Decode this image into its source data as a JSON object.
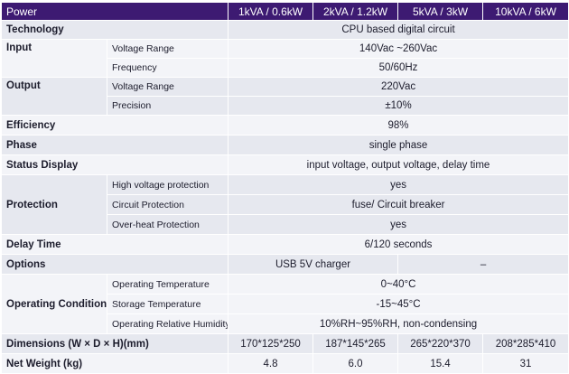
{
  "header": {
    "label": "Power",
    "models": [
      "1kVA / 0.6kW",
      "2kVA / 1.2kW",
      "5kVA / 3kW",
      "10kVA / 6kW"
    ]
  },
  "rows": {
    "technology": {
      "label": "Technology",
      "value": "CPU based digital circuit"
    },
    "input": {
      "label": "Input",
      "voltage_range": {
        "label": "Voltage Range",
        "value": "140Vac ~260Vac"
      },
      "frequency": {
        "label": "Frequency",
        "value": "50/60Hz"
      }
    },
    "output": {
      "label": "Output",
      "voltage_range": {
        "label": "Voltage Range",
        "value": "220Vac"
      },
      "precision": {
        "label": "Precision",
        "value": "±10%"
      }
    },
    "efficiency": {
      "label": "Efficiency",
      "value": "98%"
    },
    "phase": {
      "label": "Phase",
      "value": "single phase"
    },
    "status_display": {
      "label": "Status Display",
      "value": "input voltage, output voltage, delay time"
    },
    "protection": {
      "label": "Protection",
      "high_voltage": {
        "label": "High voltage protection",
        "value": "yes"
      },
      "circuit": {
        "label": "Circuit Protection",
        "value": "fuse/ Circuit breaker"
      },
      "over_heat": {
        "label": "Over-heat Protection",
        "value": "yes"
      }
    },
    "delay_time": {
      "label": "Delay Time",
      "value": "6/120 seconds"
    },
    "options": {
      "label": "Options",
      "value_small": "USB 5V charger",
      "value_large": "–"
    },
    "operating_condition": {
      "label": "Operating Condition",
      "temperature": {
        "label": "Operating Temperature",
        "value": "0~40°C"
      },
      "storage": {
        "label": "Storage Temperature",
        "value": "-15~45°C"
      },
      "humidity": {
        "label": "Operating Relative Humidity",
        "value": "10%RH~95%RH, non-condensing"
      }
    },
    "dimensions": {
      "label": "Dimensions (W × D × H)(mm)",
      "values": [
        "170*125*250",
        "187*145*265",
        "265*220*370",
        "208*285*410"
      ]
    },
    "net_weight": {
      "label": "Net Weight (kg)",
      "values": [
        "4.8",
        "6.0",
        "15.4",
        "31"
      ]
    }
  }
}
